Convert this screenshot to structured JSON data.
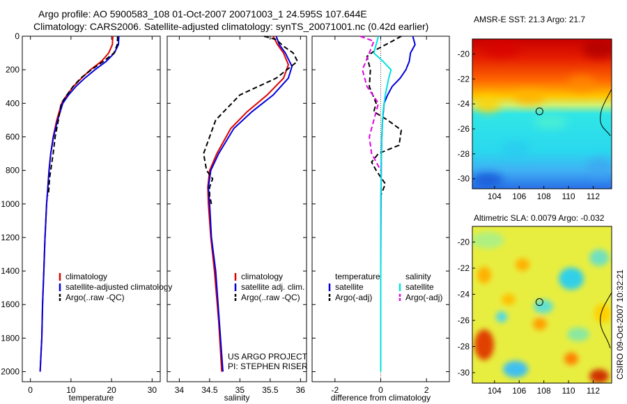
{
  "header": {
    "title_line1": "Argo profile: AO 5900583_108 01-Oct-2007 20071003_1 24.595S 107.644E",
    "title_line2": "Climatology: CARS2006. Satellite-adjusted climatology: synTS_20071001.nc (0.42d earlier)"
  },
  "side_stamp": "CSIRO 09-Oct-2007 10:32:21",
  "colors": {
    "climatology": "#dd0000",
    "satellite": "#0000dd",
    "argo": "#000000",
    "satellite_salinity": "#00e0e0",
    "argo_salinity": "#e000e0"
  },
  "chart_data": [
    {
      "type": "line",
      "name": "temperature-profile",
      "xlabel": "temperature",
      "ylabel": "",
      "xlim": [
        -2,
        32
      ],
      "ylim": [
        2060,
        0
      ],
      "xticks": [
        0,
        10,
        20,
        30
      ],
      "yticks": [
        0,
        200,
        400,
        600,
        800,
        1000,
        1200,
        1400,
        1600,
        1800,
        2000
      ],
      "legend": [
        "climatology",
        "satellite-adjusted climatology",
        "Argo(..raw -QC)"
      ],
      "series": [
        {
          "name": "climatology",
          "style": "solid",
          "color": "#dd0000",
          "x": [
            20.3,
            20.2,
            19.3,
            17.5,
            14.8,
            12.6,
            10.6,
            9.0,
            7.7,
            6.5,
            5.6,
            5.0,
            4.6,
            4.3,
            4.0,
            3.6,
            3.3,
            3.0,
            2.8,
            2.6,
            2.4
          ],
          "y": [
            0,
            50,
            100,
            150,
            200,
            250,
            300,
            350,
            400,
            500,
            600,
            700,
            800,
            900,
            1000,
            1200,
            1400,
            1600,
            1800,
            1900,
            2000
          ]
        },
        {
          "name": "satellite-adjusted climatology",
          "style": "solid",
          "color": "#0000dd",
          "x": [
            21.8,
            21.7,
            20.7,
            18.7,
            15.9,
            13.4,
            11.2,
            9.4,
            8.0,
            6.7,
            5.7,
            5.0,
            4.6,
            4.3,
            4.0,
            3.6,
            3.3,
            3.0,
            2.8,
            2.6,
            2.4
          ],
          "y": [
            0,
            50,
            100,
            150,
            200,
            250,
            300,
            350,
            400,
            500,
            600,
            700,
            800,
            900,
            1000,
            1200,
            1400,
            1600,
            1800,
            1900,
            2000
          ]
        },
        {
          "name": "Argo(..raw -QC)",
          "style": "dashed",
          "color": "#000000",
          "x": [
            21.5,
            21.4,
            20.6,
            18.0,
            15.0,
            12.4,
            10.5,
            9.0,
            7.6,
            6.9,
            6.1,
            5.6,
            5.0,
            4.7,
            4.6,
            4.4
          ],
          "y": [
            0,
            50,
            100,
            150,
            200,
            250,
            300,
            350,
            400,
            500,
            600,
            700,
            800,
            850,
            900,
            950
          ]
        }
      ],
      "annotations": []
    },
    {
      "type": "line",
      "name": "salinity-profile",
      "xlabel": "salinity",
      "ylabel": "",
      "xlim": [
        33.8,
        36.1
      ],
      "ylim": [
        2060,
        0
      ],
      "xticks": [
        34,
        34.5,
        35,
        35.5,
        36
      ],
      "yticks": [],
      "legend": [
        "climatology",
        "satellite adj. clim.",
        "Argo(..raw -QC)"
      ],
      "series": [
        {
          "name": "climatology",
          "style": "solid",
          "color": "#dd0000",
          "x": [
            35.55,
            35.62,
            35.72,
            35.8,
            35.72,
            35.45,
            35.12,
            34.85,
            34.62,
            34.5,
            34.47,
            34.48,
            34.52,
            34.58,
            34.65,
            34.7
          ],
          "y": [
            0,
            50,
            100,
            170,
            250,
            350,
            450,
            550,
            700,
            800,
            900,
            1000,
            1200,
            1400,
            1700,
            2000
          ]
        },
        {
          "name": "satellite adj. clim.",
          "style": "solid",
          "color": "#0000dd",
          "x": [
            35.6,
            35.65,
            35.75,
            35.86,
            35.8,
            35.55,
            35.2,
            34.9,
            34.65,
            34.52,
            34.48,
            34.5,
            34.53,
            34.6,
            34.66,
            34.72
          ],
          "y": [
            0,
            50,
            100,
            180,
            250,
            350,
            450,
            550,
            700,
            800,
            900,
            1000,
            1200,
            1400,
            1700,
            2000
          ]
        },
        {
          "name": "Argo(..raw -QC)",
          "style": "dashed",
          "color": "#000000",
          "x": [
            35.4,
            35.6,
            35.72,
            35.88,
            35.95,
            35.6,
            35.0,
            34.6,
            34.4,
            34.45,
            34.55,
            34.5,
            34.5,
            34.53
          ],
          "y": [
            0,
            20,
            60,
            100,
            150,
            250,
            350,
            500,
            700,
            800,
            850,
            900,
            950,
            1000
          ]
        }
      ],
      "annotations": [
        "US ARGO PROJECT",
        "PI: STEPHEN RISER"
      ]
    },
    {
      "type": "line",
      "name": "difference-profile",
      "xlabel": "difference from climatology",
      "ylabel": "",
      "xlim": [
        -3,
        3
      ],
      "ylim": [
        2060,
        0
      ],
      "xticks": [
        -2,
        0,
        2
      ],
      "yticks": [],
      "legend": [
        "temperature",
        "satellite",
        "Argo(-adj)",
        "salinity",
        "satellite",
        "Argo(-adj)"
      ],
      "series": [
        {
          "name": "temperature satellite",
          "style": "solid",
          "color": "#0000dd",
          "x": [
            1.4,
            1.5,
            1.3,
            1.25,
            1.1,
            0.85,
            0.5,
            0.3,
            0.15,
            0.08,
            0.05,
            0.03,
            0.02,
            0.01,
            0,
            0,
            0
          ],
          "y": [
            0,
            50,
            100,
            150,
            200,
            250,
            300,
            350,
            400,
            500,
            600,
            700,
            800,
            1000,
            1400,
            1800,
            2000
          ]
        },
        {
          "name": "temperature Argo(-adj)",
          "style": "dashed",
          "color": "#000000",
          "x": [
            0.9,
            0.5,
            -0.2,
            -0.6,
            -0.45,
            -0.5,
            -0.2,
            -0.3,
            0.3,
            0.9,
            0.8,
            -0.1,
            -0.4,
            -0.2,
            0.2,
            0
          ],
          "y": [
            0,
            30,
            80,
            120,
            200,
            300,
            400,
            450,
            500,
            560,
            650,
            700,
            750,
            800,
            880,
            950
          ]
        },
        {
          "name": "salinity satellite",
          "style": "solid",
          "color": "#00e0e0",
          "x": [
            -0.1,
            -0.2,
            -0.3,
            0.1,
            0.45,
            0.35,
            0.2,
            0.1,
            0.05,
            0.02,
            0,
            0,
            0
          ],
          "y": [
            0,
            50,
            100,
            150,
            200,
            250,
            350,
            450,
            600,
            800,
            1000,
            1500,
            2000
          ]
        },
        {
          "name": "salinity Argo(-adj)",
          "style": "dashed",
          "color": "#e000e0",
          "x": [
            -0.9,
            -0.3,
            -0.5,
            -0.8,
            -0.6,
            -0.1,
            -0.3,
            -0.5,
            -0.4,
            0
          ],
          "y": [
            0,
            30,
            100,
            200,
            300,
            400,
            500,
            600,
            700,
            800
          ]
        }
      ],
      "annotations": []
    },
    {
      "type": "heatmap",
      "name": "sst-map",
      "title": "AMSR-E SST: 21.3 Argo: 21.7",
      "xlim": [
        102.2,
        113.5
      ],
      "ylim": [
        -30.8,
        -18.8
      ],
      "xticks": [
        104,
        106,
        108,
        110,
        112
      ],
      "yticks": [
        -20,
        -22,
        -24,
        -26,
        -28,
        -30
      ],
      "marker": {
        "lon": 107.644,
        "lat": -24.595
      }
    },
    {
      "type": "heatmap",
      "name": "sla-map",
      "title": "Altimetric SLA: 0.0079 Argo: -0.032",
      "xlim": [
        102.2,
        113.5
      ],
      "ylim": [
        -30.8,
        -18.8
      ],
      "xticks": [
        104,
        106,
        108,
        110,
        112
      ],
      "yticks": [
        -20,
        -22,
        -24,
        -26,
        -28,
        -30
      ],
      "marker": {
        "lon": 107.644,
        "lat": -24.595
      }
    }
  ]
}
